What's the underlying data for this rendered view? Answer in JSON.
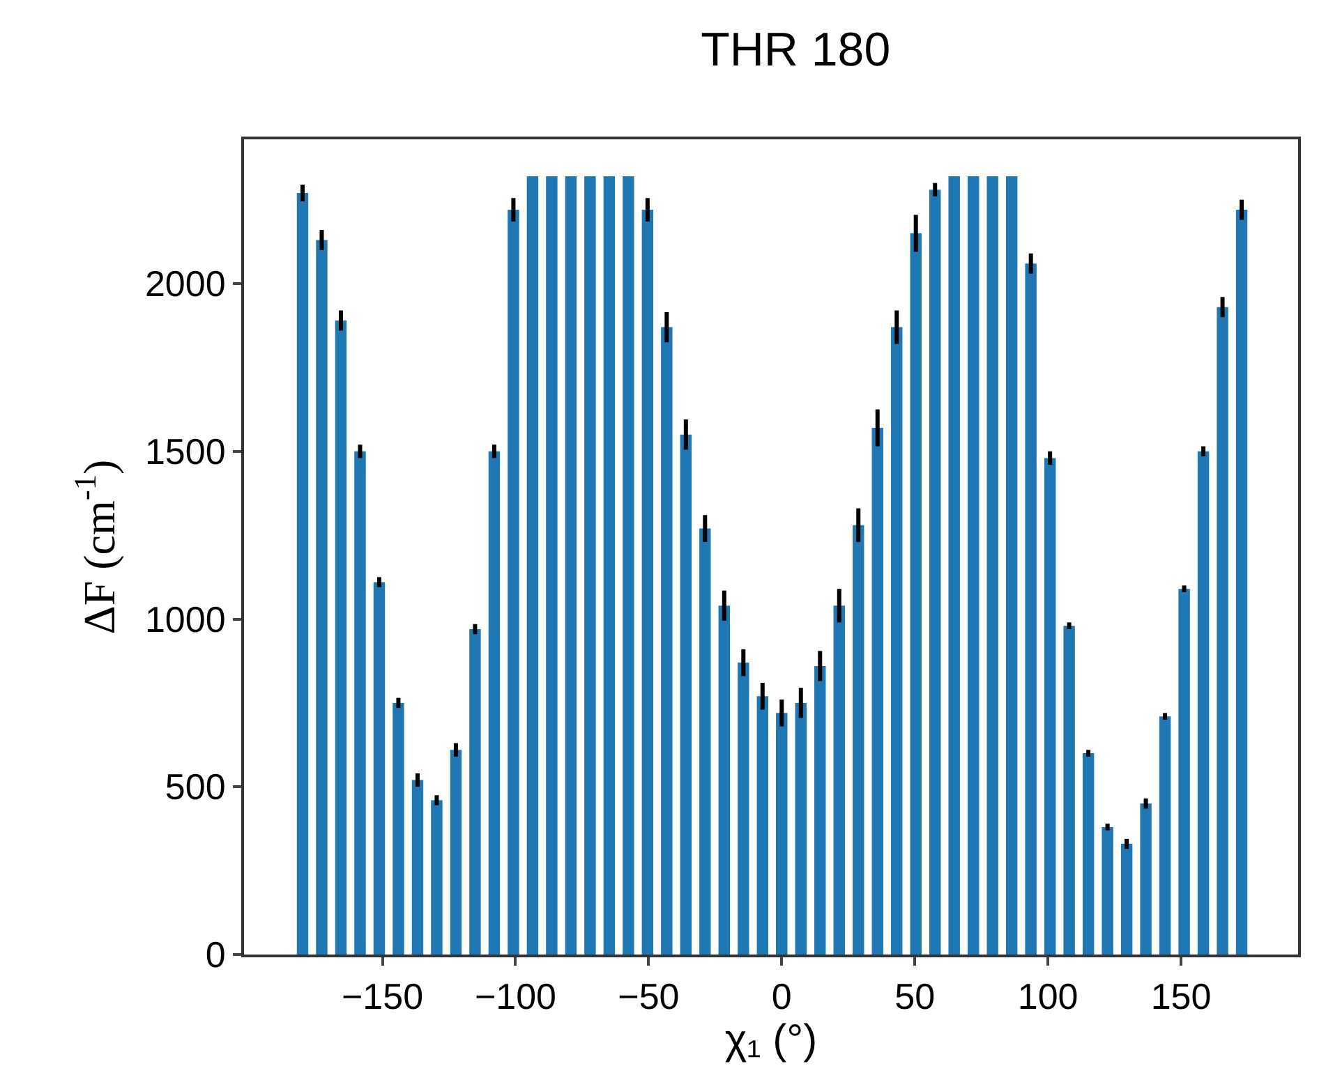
{
  "chart_data": {
    "type": "bar",
    "title": "THR 180",
    "xlabel": "χ₁ (°)",
    "ylabel": "ΔF (cm$^{-1}$)",
    "x": [
      -180,
      -172.8,
      -165.6,
      -158.4,
      -151.2,
      -144,
      -136.8,
      -129.6,
      -122.4,
      -115.2,
      -108,
      -100.8,
      -93.6,
      -86.4,
      -79.2,
      -72,
      -64.8,
      -57.6,
      -50.4,
      -43.2,
      -36,
      -28.8,
      -21.6,
      -14.4,
      -7.2,
      0,
      7.2,
      14.4,
      21.6,
      28.8,
      36,
      43.2,
      50.4,
      57.6,
      64.8,
      72,
      79.2,
      86.4,
      93.6,
      100.8,
      108,
      115.2,
      122.4,
      129.6,
      136.8,
      144,
      151.2,
      158.4,
      165.6,
      172.8
    ],
    "values": [
      2270,
      2130,
      1890,
      1500,
      1110,
      750,
      520,
      460,
      610,
      970,
      1500,
      2220,
      2320,
      2320,
      2320,
      2320,
      2320,
      2320,
      2220,
      1870,
      1550,
      1270,
      1040,
      870,
      770,
      720,
      750,
      860,
      1040,
      1280,
      1570,
      1870,
      2150,
      2280,
      2320,
      2320,
      2320,
      2320,
      2060,
      1480,
      980,
      600,
      380,
      330,
      450,
      710,
      1090,
      1500,
      1930,
      2220
    ],
    "errors": [
      25,
      30,
      30,
      20,
      15,
      15,
      20,
      15,
      20,
      15,
      20,
      35,
      null,
      null,
      null,
      null,
      null,
      null,
      35,
      45,
      45,
      40,
      45,
      40,
      40,
      40,
      45,
      45,
      50,
      50,
      55,
      50,
      55,
      20,
      null,
      null,
      null,
      null,
      30,
      20,
      10,
      10,
      10,
      15,
      15,
      10,
      10,
      15,
      30,
      30
    ],
    "color": "#1f77b4",
    "xlim": [
      -202,
      194
    ],
    "ylim": [
      0,
      2430
    ],
    "xticks": [
      -150,
      -100,
      -50,
      0,
      50,
      100,
      150
    ],
    "yticks": [
      0,
      500,
      1000,
      1500,
      2000
    ],
    "grid": false
  }
}
